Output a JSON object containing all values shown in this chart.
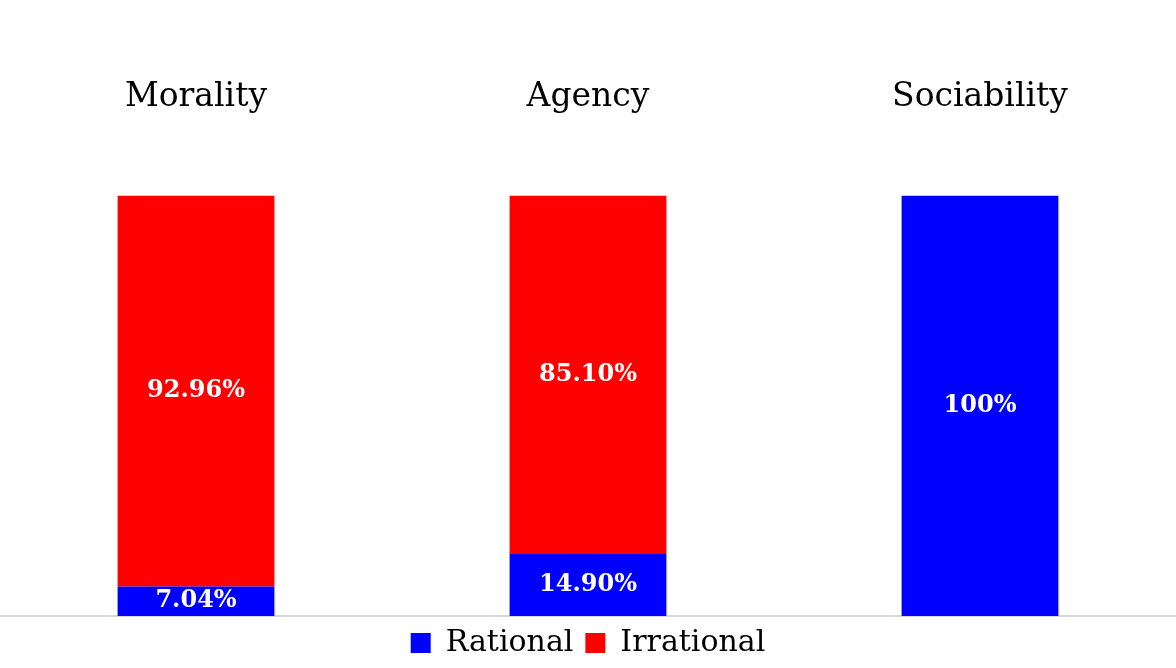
{
  "chart_data": {
    "type": "bar",
    "stacked": true,
    "categories": [
      "Morality",
      "Agency",
      "Sociability"
    ],
    "series": [
      {
        "name": "Rational",
        "color": "#0000ff",
        "values": [
          7.04,
          14.9,
          100
        ],
        "value_labels": [
          "7.04%",
          "14.90%",
          "100%"
        ]
      },
      {
        "name": "Irrational",
        "color": "#ff0000",
        "values": [
          92.96,
          85.1,
          null
        ],
        "value_labels": [
          "92.96%",
          "85.10%",
          null
        ]
      }
    ],
    "legend": "bottom"
  }
}
